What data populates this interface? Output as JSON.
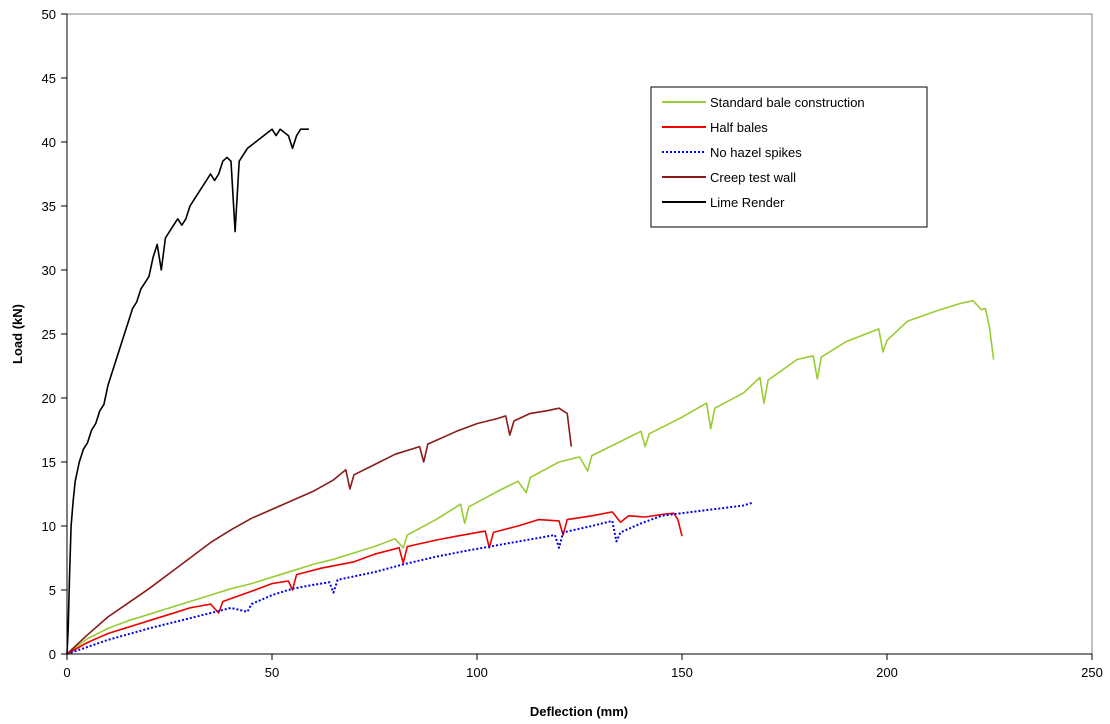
{
  "chart_data": {
    "type": "line",
    "title": "",
    "xlabel": "Deflection (mm)",
    "ylabel": "Load (kN)",
    "xlim": [
      0,
      250
    ],
    "ylim": [
      0,
      50
    ],
    "x_ticks": [
      0,
      50,
      100,
      150,
      200,
      250
    ],
    "y_ticks": [
      0,
      5,
      10,
      15,
      20,
      25,
      30,
      35,
      40,
      45,
      50
    ],
    "grid": false,
    "legend_position": "top-right",
    "series": [
      {
        "name": "Standard bale construction",
        "color": "#99cc33",
        "dash": "solid",
        "points": [
          [
            0,
            0
          ],
          [
            5,
            1.2
          ],
          [
            10,
            2
          ],
          [
            15,
            2.6
          ],
          [
            20,
            3.1
          ],
          [
            25,
            3.6
          ],
          [
            30,
            4.1
          ],
          [
            35,
            4.6
          ],
          [
            40,
            5.1
          ],
          [
            45,
            5.5
          ],
          [
            50,
            6
          ],
          [
            55,
            6.5
          ],
          [
            60,
            7
          ],
          [
            65,
            7.4
          ],
          [
            70,
            7.9
          ],
          [
            75,
            8.4
          ],
          [
            80,
            9
          ],
          [
            82,
            8.3
          ],
          [
            83,
            9.3
          ],
          [
            90,
            10.5
          ],
          [
            96,
            11.7
          ],
          [
            97,
            10.2
          ],
          [
            98,
            11.5
          ],
          [
            105,
            12.7
          ],
          [
            110,
            13.5
          ],
          [
            112,
            12.6
          ],
          [
            113,
            13.8
          ],
          [
            120,
            15
          ],
          [
            125,
            15.4
          ],
          [
            127,
            14.3
          ],
          [
            128,
            15.5
          ],
          [
            135,
            16.6
          ],
          [
            140,
            17.4
          ],
          [
            141,
            16.2
          ],
          [
            142,
            17.2
          ],
          [
            150,
            18.5
          ],
          [
            156,
            19.6
          ],
          [
            157,
            17.6
          ],
          [
            158,
            19.2
          ],
          [
            165,
            20.4
          ],
          [
            169,
            21.6
          ],
          [
            170,
            19.6
          ],
          [
            171,
            21.4
          ],
          [
            178,
            23
          ],
          [
            182,
            23.3
          ],
          [
            183,
            21.5
          ],
          [
            184,
            23.2
          ],
          [
            190,
            24.4
          ],
          [
            198,
            25.4
          ],
          [
            199,
            23.6
          ],
          [
            200,
            24.5
          ],
          [
            205,
            26
          ],
          [
            212,
            26.8
          ],
          [
            218,
            27.4
          ],
          [
            221,
            27.6
          ],
          [
            223,
            26.9
          ],
          [
            224,
            27
          ],
          [
            225,
            25.5
          ],
          [
            226,
            23
          ]
        ]
      },
      {
        "name": "Half bales",
        "color": "#ee0000",
        "dash": "solid",
        "points": [
          [
            0,
            0
          ],
          [
            5,
            0.9
          ],
          [
            10,
            1.6
          ],
          [
            15,
            2.1
          ],
          [
            20,
            2.6
          ],
          [
            25,
            3.1
          ],
          [
            30,
            3.6
          ],
          [
            35,
            3.9
          ],
          [
            37,
            3.2
          ],
          [
            38,
            4.1
          ],
          [
            45,
            4.9
          ],
          [
            50,
            5.5
          ],
          [
            54,
            5.7
          ],
          [
            55,
            5.0
          ],
          [
            56,
            6.2
          ],
          [
            62,
            6.7
          ],
          [
            70,
            7.2
          ],
          [
            75,
            7.8
          ],
          [
            81,
            8.3
          ],
          [
            82,
            7.1
          ],
          [
            83,
            8.4
          ],
          [
            90,
            8.9
          ],
          [
            95,
            9.2
          ],
          [
            102,
            9.6
          ],
          [
            103,
            8.3
          ],
          [
            104,
            9.5
          ],
          [
            110,
            10
          ],
          [
            115,
            10.5
          ],
          [
            120,
            10.4
          ],
          [
            121,
            9.3
          ],
          [
            122,
            10.5
          ],
          [
            128,
            10.8
          ],
          [
            133,
            11.1
          ],
          [
            135,
            10.3
          ],
          [
            137,
            10.8
          ],
          [
            141,
            10.7
          ],
          [
            145,
            10.9
          ],
          [
            148,
            11
          ],
          [
            149,
            10.5
          ],
          [
            150,
            9.2
          ]
        ]
      },
      {
        "name": "No hazel spikes",
        "color": "#0000ee",
        "dash": "dotted",
        "points": [
          [
            0,
            0
          ],
          [
            10,
            1.1
          ],
          [
            20,
            2
          ],
          [
            30,
            2.8
          ],
          [
            40,
            3.6
          ],
          [
            44,
            3.3
          ],
          [
            45,
            3.9
          ],
          [
            50,
            4.6
          ],
          [
            55,
            5.1
          ],
          [
            60,
            5.4
          ],
          [
            64,
            5.6
          ],
          [
            65,
            4.8
          ],
          [
            66,
            5.8
          ],
          [
            75,
            6.4
          ],
          [
            82,
            7
          ],
          [
            90,
            7.6
          ],
          [
            98,
            8.1
          ],
          [
            105,
            8.5
          ],
          [
            112,
            8.9
          ],
          [
            119,
            9.3
          ],
          [
            120,
            8.3
          ],
          [
            121,
            9.5
          ],
          [
            128,
            10
          ],
          [
            133,
            10.4
          ],
          [
            134,
            8.8
          ],
          [
            135,
            9.5
          ],
          [
            140,
            10.2
          ],
          [
            145,
            10.8
          ],
          [
            150,
            11
          ],
          [
            155,
            11.2
          ],
          [
            160,
            11.4
          ],
          [
            165,
            11.6
          ],
          [
            167,
            11.8
          ]
        ]
      },
      {
        "name": "Creep test wall",
        "color": "#8b1a1a",
        "dash": "solid",
        "points": [
          [
            0,
            0
          ],
          [
            5,
            1.5
          ],
          [
            10,
            2.9
          ],
          [
            15,
            4
          ],
          [
            20,
            5.1
          ],
          [
            25,
            6.3
          ],
          [
            30,
            7.5
          ],
          [
            35,
            8.7
          ],
          [
            40,
            9.7
          ],
          [
            45,
            10.6
          ],
          [
            50,
            11.3
          ],
          [
            55,
            12
          ],
          [
            60,
            12.7
          ],
          [
            65,
            13.6
          ],
          [
            68,
            14.4
          ],
          [
            69,
            12.9
          ],
          [
            70,
            14
          ],
          [
            75,
            14.8
          ],
          [
            80,
            15.6
          ],
          [
            86,
            16.2
          ],
          [
            87,
            15
          ],
          [
            88,
            16.4
          ],
          [
            95,
            17.4
          ],
          [
            100,
            18
          ],
          [
            105,
            18.4
          ],
          [
            107,
            18.6
          ],
          [
            108,
            17.1
          ],
          [
            109,
            18.2
          ],
          [
            113,
            18.8
          ],
          [
            117,
            19
          ],
          [
            120,
            19.2
          ],
          [
            122,
            18.8
          ],
          [
            123,
            16.2
          ]
        ]
      },
      {
        "name": "Lime Render",
        "color": "#000000",
        "dash": "solid",
        "points": [
          [
            0,
            0
          ],
          [
            0.3,
            2
          ],
          [
            0.6,
            6
          ],
          [
            1,
            10
          ],
          [
            1.5,
            12
          ],
          [
            2,
            13.5
          ],
          [
            3,
            15
          ],
          [
            4,
            16
          ],
          [
            5,
            16.5
          ],
          [
            6,
            17.5
          ],
          [
            7,
            18
          ],
          [
            8,
            19
          ],
          [
            9,
            19.5
          ],
          [
            10,
            21
          ],
          [
            11,
            22
          ],
          [
            12,
            23
          ],
          [
            13,
            24
          ],
          [
            14,
            25
          ],
          [
            15,
            26
          ],
          [
            16,
            27
          ],
          [
            17,
            27.5
          ],
          [
            18,
            28.5
          ],
          [
            19,
            29
          ],
          [
            20,
            29.5
          ],
          [
            21,
            31
          ],
          [
            22,
            32
          ],
          [
            23,
            30
          ],
          [
            24,
            32.5
          ],
          [
            25,
            33
          ],
          [
            26,
            33.5
          ],
          [
            27,
            34
          ],
          [
            28,
            33.5
          ],
          [
            29,
            34
          ],
          [
            30,
            35
          ],
          [
            31,
            35.5
          ],
          [
            32,
            36
          ],
          [
            33,
            36.5
          ],
          [
            34,
            37
          ],
          [
            35,
            37.5
          ],
          [
            36,
            37
          ],
          [
            37,
            37.5
          ],
          [
            38,
            38.5
          ],
          [
            39,
            38.8
          ],
          [
            40,
            38.5
          ],
          [
            41,
            33
          ],
          [
            42,
            38.5
          ],
          [
            43,
            39
          ],
          [
            44,
            39.5
          ],
          [
            46,
            40
          ],
          [
            48,
            40.5
          ],
          [
            50,
            41
          ],
          [
            51,
            40.5
          ],
          [
            52,
            41
          ],
          [
            54,
            40.5
          ],
          [
            55,
            39.5
          ],
          [
            56,
            40.5
          ],
          [
            57,
            41
          ],
          [
            59,
            41
          ]
        ]
      }
    ]
  }
}
